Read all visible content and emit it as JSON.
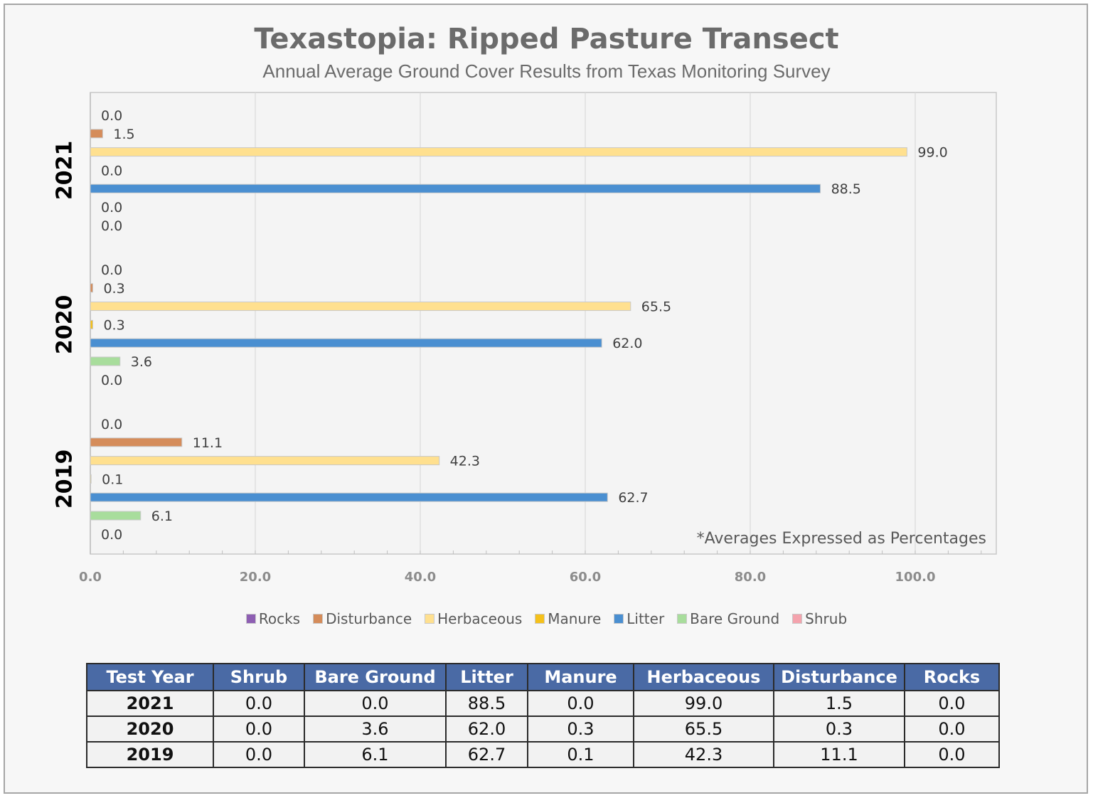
{
  "chart_data": {
    "type": "bar",
    "orientation": "horizontal",
    "title": "Texastopia: Ripped Pasture Transect",
    "subtitle": "Annual Average Ground Cover Results from Texas Monitoring Survey",
    "note": "*Averages Expressed as Percentages",
    "categories": [
      "2021",
      "2020",
      "2019"
    ],
    "series": [
      {
        "name": "Rocks",
        "color": "#8e5fb3",
        "values": [
          0.0,
          0.0,
          0.0
        ]
      },
      {
        "name": "Disturbance",
        "color": "#d58c5a",
        "values": [
          1.5,
          0.3,
          11.1
        ]
      },
      {
        "name": "Herbaceous",
        "color": "#ffe08f",
        "values": [
          99.0,
          65.5,
          42.3
        ]
      },
      {
        "name": "Manure",
        "color": "#f5c11b",
        "values": [
          0.0,
          0.3,
          0.1
        ]
      },
      {
        "name": "Litter",
        "color": "#4a8fd1",
        "values": [
          88.5,
          62.0,
          62.7
        ]
      },
      {
        "name": "Bare Ground",
        "color": "#a8dd9c",
        "values": [
          0.0,
          3.6,
          6.1
        ]
      },
      {
        "name": "Shrub",
        "color": "#f4a3ad",
        "values": [
          0.0,
          0.0,
          0.0
        ]
      }
    ],
    "xlim": [
      0,
      110
    ],
    "xticks": [
      "0.0",
      "20.0",
      "40.0",
      "60.0",
      "80.0",
      "100.0"
    ],
    "grid": true,
    "legend_position": "bottom"
  },
  "table": {
    "headers": [
      "Test Year",
      "Shrub",
      "Bare Ground",
      "Litter",
      "Manure",
      "Herbaceous",
      "Disturbance",
      "Rocks"
    ],
    "rows": [
      [
        "2021",
        "0.0",
        "0.0",
        "88.5",
        "0.0",
        "99.0",
        "1.5",
        "0.0"
      ],
      [
        "2020",
        "0.0",
        "3.6",
        "62.0",
        "0.3",
        "65.5",
        "0.3",
        "0.0"
      ],
      [
        "2019",
        "0.0",
        "6.1",
        "62.7",
        "0.1",
        "42.3",
        "11.1",
        "0.0"
      ]
    ]
  }
}
